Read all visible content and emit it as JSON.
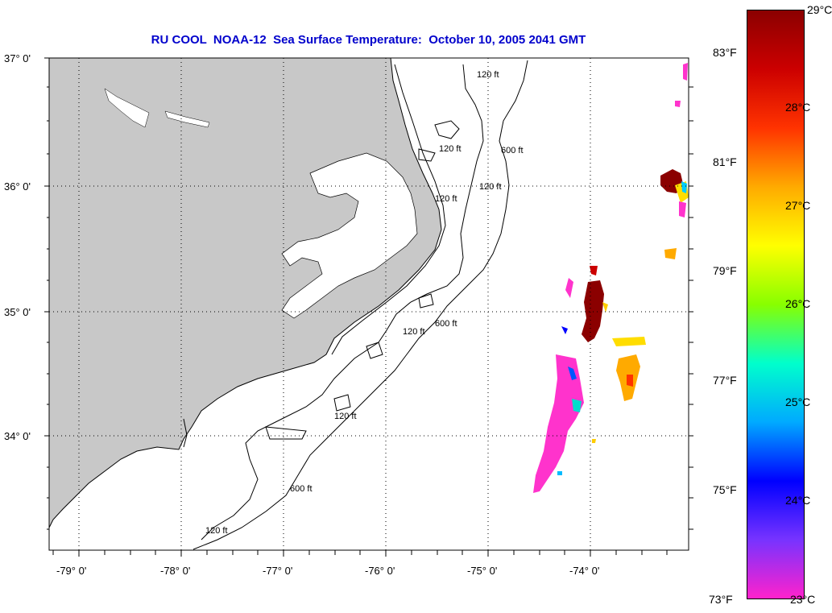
{
  "title": "RU COOL  NOAA-12  Sea Surface Temperature:  October 10, 2005 2041 GMT",
  "map": {
    "lat_labels": [
      "37° 0'",
      "36° 0'",
      "35° 0'",
      "34° 0'"
    ],
    "lon_labels": [
      "-79° 0'",
      "-78° 0'",
      "-77° 0'",
      "-76° 0'",
      "-75° 0'",
      "-74° 0'"
    ],
    "contour_labels": [
      "120 ft",
      "120 ft",
      "120 ft",
      "600 ft",
      "120 ft",
      "600 ft",
      "120 ft",
      "120 ft",
      "600 ft",
      "120 ft"
    ],
    "land_color": "#c8c8c8",
    "ocean_color": "#ffffff"
  },
  "colorbar": {
    "celsius_labels": [
      "29°C",
      "28°C",
      "27°C",
      "26°C",
      "25°C",
      "24°C",
      "23°C"
    ],
    "fahrenheit_labels": [
      "83°F",
      "81°F",
      "79°F",
      "77°F",
      "75°F",
      "73°F"
    ],
    "range_celsius": [
      23,
      29
    ],
    "colors": [
      "#ff22cc",
      "#7733ff",
      "#0000ff",
      "#00aaff",
      "#00ffcc",
      "#88ff00",
      "#ffff00",
      "#ffaa00",
      "#ff3300",
      "#cc0000",
      "#8b0000"
    ]
  }
}
